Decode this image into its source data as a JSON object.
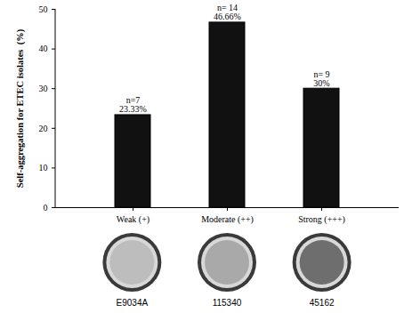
{
  "chart_data": {
    "type": "bar",
    "categories": [
      "Weak (+)",
      "Moderate (++)",
      "Strong (+++)"
    ],
    "values": [
      23.33,
      46.66,
      30
    ],
    "value_labels": [
      "23.33%",
      "46.66%",
      "30%"
    ],
    "annotations": [
      "n=7",
      "n= 14",
      "n= 9"
    ],
    "data_labels": true,
    "color": "#111111",
    "ylabel": "Self-aggregation for ETEC isolates  (%)",
    "ylim": [
      0,
      50
    ],
    "yticks": [
      0,
      10,
      20,
      30,
      40,
      50
    ],
    "grid": false,
    "plate_labels": [
      "E9034A",
      "115340",
      "45162"
    ]
  }
}
